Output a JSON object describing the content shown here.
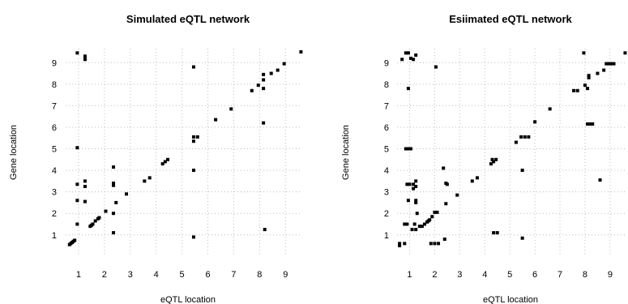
{
  "chart_data": [
    {
      "type": "scatter",
      "title": "Simulated eQTL network",
      "xlabel": "eQTL location",
      "ylabel": "Gene location",
      "xlim": [
        0.5,
        9.65
      ],
      "ylim": [
        0.05,
        9.65
      ],
      "xticks": [
        1,
        2,
        3,
        4,
        5,
        6,
        7,
        8,
        9
      ],
      "yticks": [
        1,
        2,
        3,
        4,
        5,
        6,
        7,
        8,
        9
      ],
      "grid": true,
      "points": [
        [
          0.95,
          9.45
        ],
        [
          1.25,
          9.3
        ],
        [
          1.25,
          9.15
        ],
        [
          0.95,
          5.05
        ],
        [
          0.95,
          3.35
        ],
        [
          0.95,
          2.6
        ],
        [
          0.95,
          1.5
        ],
        [
          0.65,
          0.55
        ],
        [
          0.7,
          0.6
        ],
        [
          0.75,
          0.65
        ],
        [
          0.8,
          0.7
        ],
        [
          0.85,
          0.75
        ],
        [
          1.25,
          3.5
        ],
        [
          1.25,
          3.25
        ],
        [
          1.25,
          2.55
        ],
        [
          1.45,
          1.4
        ],
        [
          1.5,
          1.45
        ],
        [
          1.55,
          1.5
        ],
        [
          1.65,
          1.65
        ],
        [
          1.75,
          1.75
        ],
        [
          1.8,
          1.8
        ],
        [
          2.05,
          2.1
        ],
        [
          2.35,
          4.15
        ],
        [
          2.35,
          3.4
        ],
        [
          2.35,
          3.3
        ],
        [
          2.35,
          2.0
        ],
        [
          2.35,
          1.1
        ],
        [
          2.45,
          2.5
        ],
        [
          2.85,
          2.9
        ],
        [
          3.55,
          3.5
        ],
        [
          3.75,
          3.65
        ],
        [
          4.25,
          4.3
        ],
        [
          4.35,
          4.4
        ],
        [
          4.45,
          4.5
        ],
        [
          5.45,
          8.8
        ],
        [
          5.45,
          5.55
        ],
        [
          5.6,
          5.55
        ],
        [
          5.45,
          5.35
        ],
        [
          5.45,
          4.0
        ],
        [
          5.45,
          0.9
        ],
        [
          6.3,
          6.35
        ],
        [
          6.9,
          6.85
        ],
        [
          7.7,
          7.7
        ],
        [
          7.95,
          7.95
        ],
        [
          8.15,
          8.2
        ],
        [
          8.15,
          8.45
        ],
        [
          8.15,
          7.8
        ],
        [
          8.15,
          6.2
        ],
        [
          8.2,
          1.25
        ],
        [
          8.45,
          8.5
        ],
        [
          8.7,
          8.65
        ],
        [
          8.95,
          8.95
        ],
        [
          9.6,
          9.5
        ]
      ]
    },
    {
      "type": "scatter",
      "title": "Esiimated eQTL network",
      "xlabel": "eQTL location",
      "ylabel": "Gene location",
      "xlim": [
        0.5,
        9.65
      ],
      "ylim": [
        0.05,
        9.65
      ],
      "xticks": [
        1,
        2,
        3,
        4,
        5,
        6,
        7,
        8,
        9
      ],
      "yticks": [
        1,
        2,
        3,
        4,
        5,
        6,
        7,
        8,
        9
      ],
      "grid": true,
      "points": [
        [
          0.7,
          9.15
        ],
        [
          0.85,
          9.45
        ],
        [
          0.95,
          9.45
        ],
        [
          1.05,
          9.2
        ],
        [
          1.15,
          9.15
        ],
        [
          1.25,
          9.35
        ],
        [
          0.95,
          7.8
        ],
        [
          0.85,
          5.0
        ],
        [
          0.95,
          5.0
        ],
        [
          1.05,
          5.0
        ],
        [
          0.9,
          3.35
        ],
        [
          1.0,
          3.35
        ],
        [
          1.15,
          3.35
        ],
        [
          1.25,
          3.5
        ],
        [
          1.25,
          3.25
        ],
        [
          1.15,
          3.15
        ],
        [
          0.95,
          2.6
        ],
        [
          1.25,
          2.6
        ],
        [
          1.25,
          2.5
        ],
        [
          1.3,
          2.0
        ],
        [
          0.8,
          1.5
        ],
        [
          0.9,
          1.5
        ],
        [
          1.2,
          1.5
        ],
        [
          1.1,
          1.25
        ],
        [
          1.25,
          1.25
        ],
        [
          0.6,
          0.6
        ],
        [
          0.6,
          0.5
        ],
        [
          0.8,
          0.6
        ],
        [
          1.4,
          1.4
        ],
        [
          1.5,
          1.4
        ],
        [
          1.6,
          1.5
        ],
        [
          1.7,
          1.6
        ],
        [
          1.75,
          1.65
        ],
        [
          1.8,
          1.7
        ],
        [
          1.9,
          1.85
        ],
        [
          2.0,
          2.05
        ],
        [
          2.1,
          2.05
        ],
        [
          2.05,
          8.8
        ],
        [
          1.85,
          0.6
        ],
        [
          2.0,
          0.6
        ],
        [
          2.15,
          0.6
        ],
        [
          2.4,
          0.8
        ],
        [
          2.35,
          4.1
        ],
        [
          2.45,
          3.4
        ],
        [
          2.5,
          3.35
        ],
        [
          2.45,
          2.45
        ],
        [
          2.9,
          2.85
        ],
        [
          3.5,
          3.5
        ],
        [
          3.7,
          3.65
        ],
        [
          4.25,
          4.3
        ],
        [
          4.35,
          4.4
        ],
        [
          4.45,
          4.5
        ],
        [
          4.3,
          4.5
        ],
        [
          4.35,
          1.1
        ],
        [
          4.5,
          1.1
        ],
        [
          5.25,
          5.3
        ],
        [
          5.45,
          5.55
        ],
        [
          5.6,
          5.55
        ],
        [
          5.75,
          5.55
        ],
        [
          5.5,
          4.0
        ],
        [
          5.5,
          0.85
        ],
        [
          6.0,
          6.25
        ],
        [
          6.6,
          6.85
        ],
        [
          7.55,
          7.7
        ],
        [
          7.7,
          7.7
        ],
        [
          7.95,
          9.45
        ],
        [
          8.0,
          7.95
        ],
        [
          8.15,
          8.3
        ],
        [
          8.15,
          8.4
        ],
        [
          8.1,
          7.8
        ],
        [
          8.1,
          6.15
        ],
        [
          8.2,
          6.15
        ],
        [
          8.3,
          6.15
        ],
        [
          8.5,
          8.5
        ],
        [
          8.6,
          3.55
        ],
        [
          8.75,
          8.65
        ],
        [
          8.85,
          8.95
        ],
        [
          8.95,
          8.95
        ],
        [
          9.05,
          8.95
        ],
        [
          9.15,
          8.95
        ],
        [
          9.6,
          9.45
        ]
      ]
    }
  ]
}
